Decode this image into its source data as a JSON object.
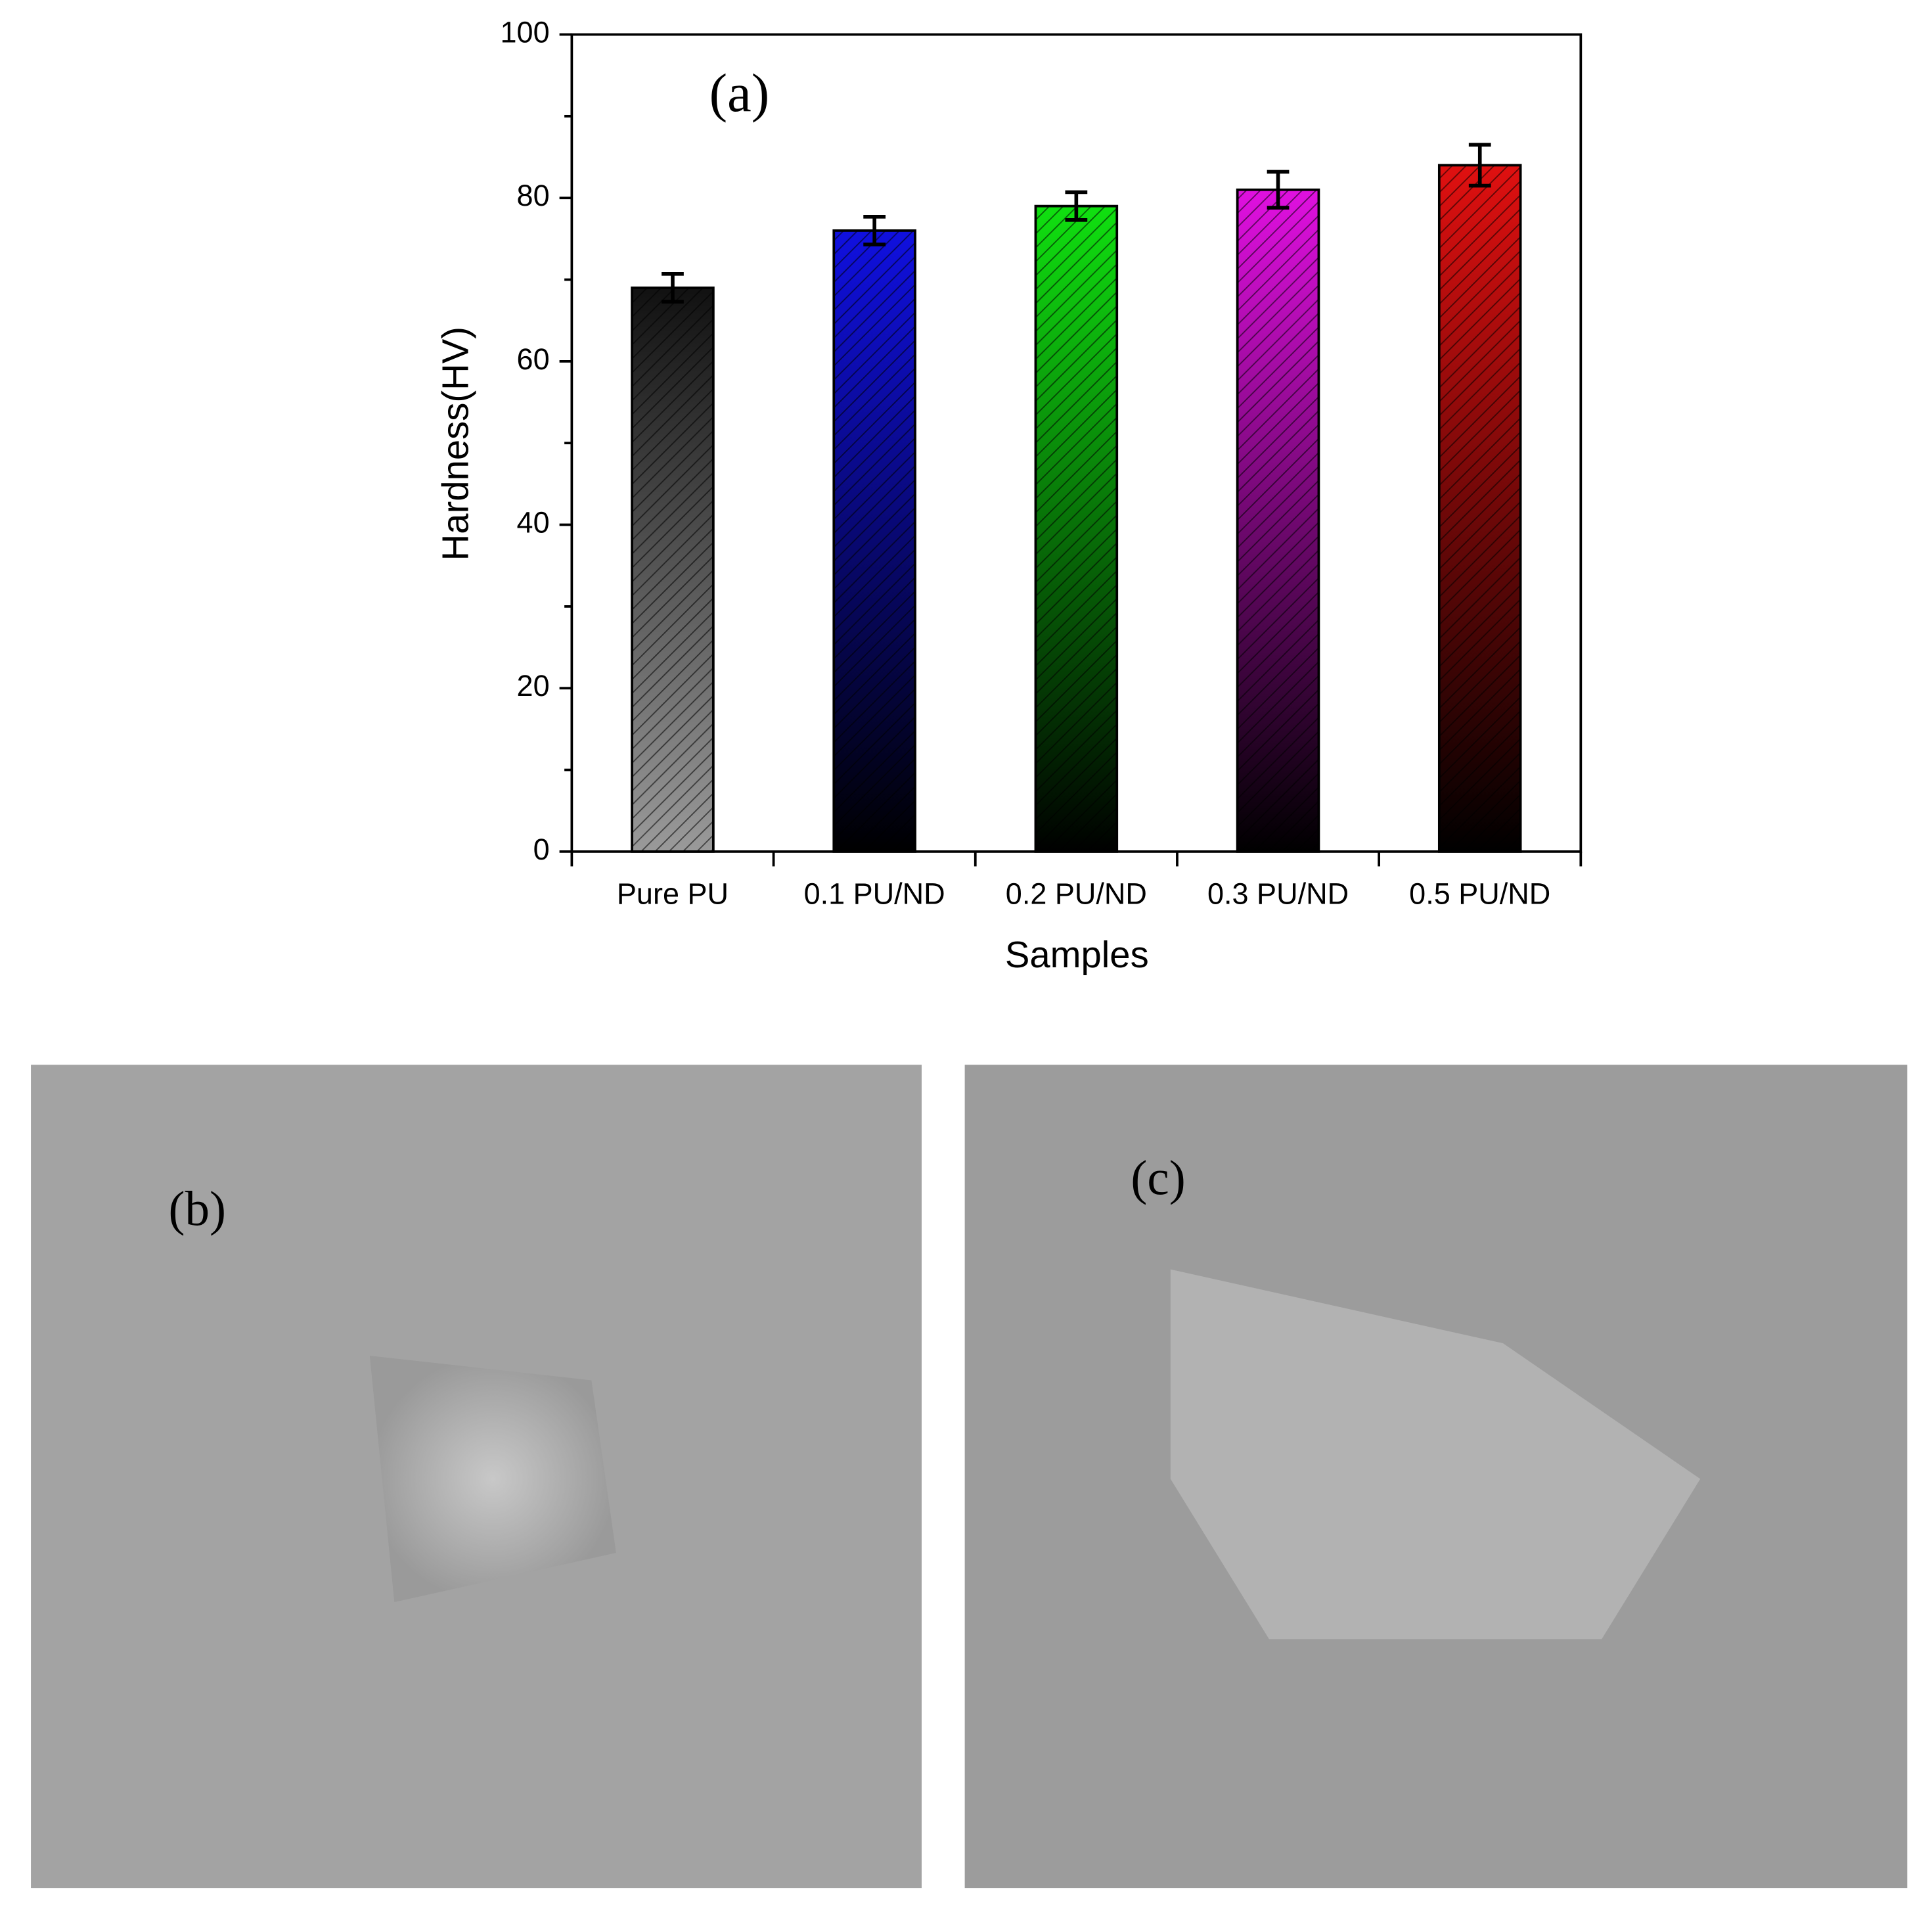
{
  "chart_data": {
    "type": "bar",
    "annotation": "(a)",
    "x_label": "Samples",
    "y_label": "Hardness(HV)",
    "categories": [
      "Pure PU",
      "0.1 PU/ND",
      "0.2 PU/ND",
      "0.3 PU/ND",
      "0.5 PU/ND"
    ],
    "values": [
      69,
      76,
      79,
      81,
      84
    ],
    "errors": [
      1.7,
      1.7,
      1.7,
      2.2,
      2.5
    ],
    "colors": [
      "#111111",
      "#1010e0",
      "#10e010",
      "#e010e0",
      "#e01010"
    ],
    "ylim": [
      0,
      100
    ],
    "yticks": [
      0,
      20,
      40,
      60,
      80,
      100
    ]
  },
  "panels": [
    {
      "label": "(b)"
    },
    {
      "label": "(c)"
    }
  ]
}
